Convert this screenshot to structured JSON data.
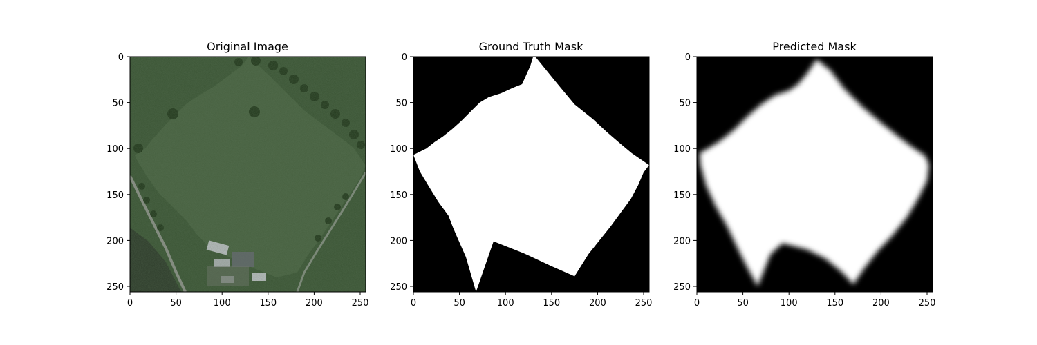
{
  "chart_data": [
    {
      "type": "image",
      "title": "Original Image",
      "xlim": [
        0,
        256
      ],
      "ylim": [
        256,
        0
      ],
      "xticks": [
        0,
        50,
        100,
        150,
        200,
        250
      ],
      "yticks": [
        0,
        50,
        100,
        150,
        200,
        250
      ],
      "content": "aerial photo of green field with trees, road and farm buildings",
      "colors": {
        "field": "#3f5a3a",
        "dark": "#24361f",
        "trees": "#2c4a22",
        "road": "#8a8f86",
        "roof": "#b8bcbf"
      }
    },
    {
      "type": "image",
      "title": "Ground Truth Mask",
      "xlim": [
        0,
        256
      ],
      "ylim": [
        256,
        0
      ],
      "xticks": [
        0,
        50,
        100,
        150,
        200,
        250
      ],
      "yticks": [
        0,
        50,
        100,
        150,
        200,
        250
      ],
      "mask_polygon": [
        [
          130,
          0
        ],
        [
          133,
          1
        ],
        [
          155,
          28
        ],
        [
          175,
          52
        ],
        [
          195,
          68
        ],
        [
          210,
          82
        ],
        [
          225,
          95
        ],
        [
          237,
          105
        ],
        [
          256,
          118
        ],
        [
          250,
          126
        ],
        [
          244,
          140
        ],
        [
          236,
          155
        ],
        [
          225,
          170
        ],
        [
          214,
          185
        ],
        [
          202,
          200
        ],
        [
          190,
          215
        ],
        [
          175,
          239
        ],
        [
          150,
          228
        ],
        [
          120,
          214
        ],
        [
          87,
          201
        ],
        [
          68,
          256
        ],
        [
          57,
          218
        ],
        [
          46,
          193
        ],
        [
          43,
          186
        ],
        [
          38,
          173
        ],
        [
          27,
          158
        ],
        [
          16,
          140
        ],
        [
          7,
          125
        ],
        [
          0,
          107
        ],
        [
          6,
          104
        ],
        [
          14,
          100
        ],
        [
          23,
          93
        ],
        [
          32,
          87
        ],
        [
          42,
          79
        ],
        [
          52,
          70
        ],
        [
          62,
          60
        ],
        [
          72,
          50
        ],
        [
          82,
          44
        ],
        [
          95,
          40
        ],
        [
          108,
          34
        ],
        [
          118,
          30
        ],
        [
          127,
          10
        ]
      ],
      "colors": {
        "background": "#000000",
        "foreground": "#ffffff"
      }
    },
    {
      "type": "image",
      "title": "Predicted Mask",
      "xlim": [
        0,
        256
      ],
      "ylim": [
        256,
        0
      ],
      "xticks": [
        0,
        50,
        100,
        150,
        200,
        250
      ],
      "yticks": [
        0,
        50,
        100,
        150,
        200,
        250
      ],
      "mask_polygon": [
        [
          130,
          3
        ],
        [
          145,
          15
        ],
        [
          160,
          35
        ],
        [
          180,
          55
        ],
        [
          200,
          72
        ],
        [
          220,
          88
        ],
        [
          236,
          100
        ],
        [
          248,
          108
        ],
        [
          252,
          118
        ],
        [
          250,
          135
        ],
        [
          240,
          155
        ],
        [
          228,
          175
        ],
        [
          212,
          195
        ],
        [
          196,
          212
        ],
        [
          182,
          230
        ],
        [
          170,
          248
        ],
        [
          158,
          235
        ],
        [
          140,
          220
        ],
        [
          120,
          210
        ],
        [
          93,
          203
        ],
        [
          80,
          215
        ],
        [
          66,
          250
        ],
        [
          55,
          230
        ],
        [
          45,
          210
        ],
        [
          33,
          185
        ],
        [
          20,
          162
        ],
        [
          10,
          140
        ],
        [
          4,
          118
        ],
        [
          3,
          105
        ],
        [
          12,
          100
        ],
        [
          25,
          92
        ],
        [
          40,
          80
        ],
        [
          55,
          65
        ],
        [
          70,
          52
        ],
        [
          85,
          42
        ],
        [
          100,
          37
        ],
        [
          110,
          30
        ],
        [
          120,
          18
        ]
      ],
      "colors": {
        "background": "#000000",
        "foreground": "#ffffff"
      }
    }
  ]
}
